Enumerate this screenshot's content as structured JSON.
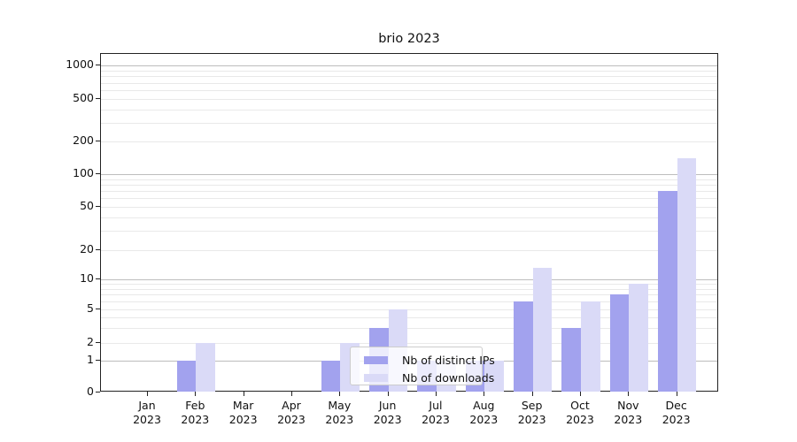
{
  "title": "brio 2023",
  "legend": {
    "items": [
      {
        "label": "Nb of distinct IPs",
        "color": "#a2a2ee"
      },
      {
        "label": "Nb of downloads",
        "color": "#dadaf7"
      }
    ]
  },
  "chart_data": {
    "type": "bar",
    "title": "brio 2023",
    "categories": [
      "Jan 2023",
      "Feb 2023",
      "Mar 2023",
      "Apr 2023",
      "May 2023",
      "Jun 2023",
      "Jul 2023",
      "Aug 2023",
      "Sep 2023",
      "Oct 2023",
      "Nov 2023",
      "Dec 2023"
    ],
    "series": [
      {
        "name": "Nb of distinct IPs",
        "color": "#a2a2ee",
        "values": [
          0,
          1,
          0,
          0,
          1,
          3,
          1,
          1,
          6,
          3,
          7,
          70
        ]
      },
      {
        "name": "Nb of downloads",
        "color": "#dadaf7",
        "values": [
          0,
          2,
          0,
          0,
          2,
          5,
          1,
          1,
          13,
          6,
          9,
          140
        ]
      }
    ],
    "xlabel": "",
    "ylabel": "",
    "yscale": "symlog",
    "yticks": [
      0,
      1,
      2,
      5,
      10,
      20,
      50,
      100,
      200,
      500,
      1000
    ],
    "ylim": [
      0,
      1300
    ],
    "grid": "horizontal",
    "legend_position": "lower center"
  },
  "colors": {
    "bar_ips": "#a2a2ee",
    "bar_downloads": "#dadaf7",
    "grid_major": "#bdbdbd",
    "grid_minor": "#e9e9e9",
    "spine": "#222222"
  }
}
